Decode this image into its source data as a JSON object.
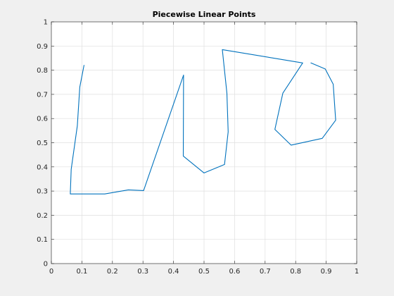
{
  "chart_data": {
    "type": "line",
    "title": "Piecewise Linear Points",
    "xlabel": "",
    "ylabel": "",
    "xlim": [
      0,
      1
    ],
    "ylim": [
      0,
      1
    ],
    "xticks": [
      0,
      0.1,
      0.2,
      0.3,
      0.4,
      0.5,
      0.6,
      0.7,
      0.8,
      0.9,
      1
    ],
    "yticks": [
      0,
      0.1,
      0.2,
      0.3,
      0.4,
      0.5,
      0.6,
      0.7,
      0.8,
      0.9,
      1
    ],
    "xtick_labels": [
      "0",
      "0.1",
      "0.2",
      "0.3",
      "0.4",
      "0.5",
      "0.6",
      "0.7",
      "0.8",
      "0.9",
      "1"
    ],
    "ytick_labels": [
      "0",
      "0.1",
      "0.2",
      "0.3",
      "0.4",
      "0.5",
      "0.6",
      "0.7",
      "0.8",
      "0.9",
      "1"
    ],
    "grid": true,
    "series": [
      {
        "color": "#0072bd",
        "x": [
          0.107,
          0.093,
          0.085,
          0.065,
          0.062,
          0.175,
          0.252,
          0.302,
          0.433,
          0.432,
          0.5,
          0.567,
          0.579,
          0.575,
          0.56,
          0.823,
          0.758,
          0.732,
          0.785,
          0.887,
          0.931,
          0.923,
          0.897,
          0.85
        ],
        "y": [
          0.82,
          0.73,
          0.57,
          0.39,
          0.288,
          0.288,
          0.305,
          0.302,
          0.78,
          0.445,
          0.375,
          0.41,
          0.545,
          0.705,
          0.885,
          0.83,
          0.705,
          0.555,
          0.49,
          0.518,
          0.593,
          0.742,
          0.805,
          0.83
        ]
      }
    ]
  }
}
